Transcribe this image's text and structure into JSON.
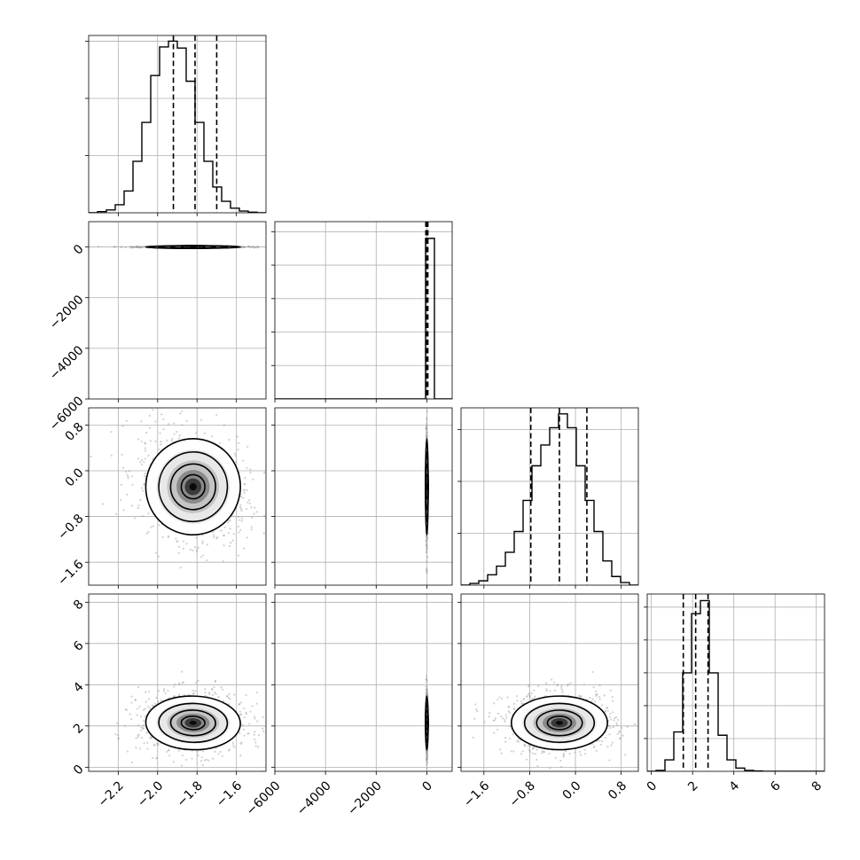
{
  "chart_data": {
    "type": "corner",
    "parameters": 4,
    "axes": [
      {
        "range": [
          -2.35,
          -1.45
        ],
        "ticks": [
          -2.2,
          -2.0,
          -1.8,
          -1.6
        ],
        "tick_labels": [
          "−2.2",
          "−2.0",
          "−1.8",
          "−1.6"
        ]
      },
      {
        "range": [
          -6000,
          1000
        ],
        "ticks": [
          -6000,
          -4000,
          -2000,
          0
        ],
        "tick_labels": [
          "−6000",
          "−4000",
          "−2000",
          "0"
        ]
      },
      {
        "range": [
          -2.0,
          1.1
        ],
        "ticks": [
          -1.6,
          -0.8,
          0.0,
          0.8
        ],
        "tick_labels": [
          "−1.6",
          "−0.8",
          "0.0",
          "0.8"
        ]
      },
      {
        "range": [
          -0.2,
          8.4
        ],
        "ticks": [
          0,
          2,
          4,
          6,
          8
        ],
        "tick_labels": [
          "0",
          "2",
          "4",
          "6",
          "8"
        ]
      }
    ],
    "marginals": [
      {
        "bin_edges": [
          -2.35,
          -2.305,
          -2.26,
          -2.215,
          -2.17,
          -2.125,
          -2.08,
          -2.035,
          -1.99,
          -1.945,
          -1.9,
          -1.855,
          -1.81,
          -1.765,
          -1.72,
          -1.675,
          -1.63,
          -1.585,
          -1.54,
          -1.495,
          -1.45
        ],
        "counts": [
          0,
          2,
          5,
          14,
          38,
          90,
          158,
          240,
          290,
          300,
          288,
          230,
          158,
          90,
          45,
          20,
          8,
          3,
          1,
          0
        ],
        "ylim": [
          0,
          310
        ],
        "yticks": [
          100,
          200,
          300
        ],
        "quantiles": [
          -1.92,
          -1.81,
          -1.7
        ]
      },
      {
        "bin_edges": [
          -6000,
          -5650,
          -5300,
          -4950,
          -4600,
          -4250,
          -3900,
          -3550,
          -3200,
          -2850,
          -2500,
          -2150,
          -1800,
          -1450,
          -1100,
          -750,
          -400,
          -50,
          300,
          650,
          1000
        ],
        "counts": [
          0,
          0,
          0,
          0,
          0,
          0,
          0,
          0,
          0,
          0,
          0,
          0,
          0,
          0,
          0,
          0,
          0,
          4800,
          0,
          0
        ],
        "ylim": [
          0,
          5300
        ],
        "yticks": [
          1000,
          2000,
          3000,
          4000,
          5000
        ],
        "quantiles": [
          -40,
          0,
          40
        ]
      },
      {
        "bin_edges": [
          -2.0,
          -1.845,
          -1.69,
          -1.535,
          -1.38,
          -1.225,
          -1.07,
          -0.915,
          -0.76,
          -0.605,
          -0.45,
          -0.295,
          -0.14,
          0.015,
          0.17,
          0.325,
          0.48,
          0.635,
          0.79,
          0.945,
          1.1
        ],
        "counts": [
          0,
          2,
          5,
          12,
          22,
          38,
          62,
          98,
          138,
          162,
          182,
          198,
          182,
          138,
          98,
          62,
          28,
          10,
          3,
          0
        ],
        "ylim": [
          0,
          205
        ],
        "yticks": [
          60,
          120,
          180
        ],
        "quantiles": [
          -0.78,
          -0.28,
          0.2
        ]
      },
      {
        "bin_edges": [
          -0.2,
          0.23,
          0.66,
          1.09,
          1.52,
          1.95,
          2.38,
          2.81,
          3.24,
          3.67,
          4.1,
          4.53,
          4.96,
          5.39,
          5.82,
          6.25,
          6.68,
          7.11,
          7.54,
          7.97,
          8.4
        ],
        "counts": [
          0,
          3,
          35,
          120,
          300,
          480,
          520,
          300,
          110,
          35,
          10,
          3,
          1,
          0,
          0,
          0,
          0,
          0,
          0,
          0
        ],
        "ylim": [
          0,
          540
        ],
        "yticks": [
          100,
          200,
          300,
          400,
          500
        ],
        "quantiles": [
          1.55,
          2.15,
          2.75
        ]
      }
    ],
    "joint": [
      {
        "x": 0,
        "y": 1,
        "center": [
          -1.82,
          0
        ],
        "sd": [
          0.12,
          12
        ],
        "rho": 0
      },
      {
        "x": 0,
        "y": 2,
        "center": [
          -1.82,
          -0.28
        ],
        "sd": [
          0.12,
          0.42
        ],
        "rho": -0.25
      },
      {
        "x": 0,
        "y": 3,
        "center": [
          -1.82,
          2.15
        ],
        "sd": [
          0.12,
          0.65
        ],
        "rho": -0.05
      },
      {
        "x": 1,
        "y": 2,
        "center": [
          0,
          -0.28
        ],
        "sd": [
          10,
          0.42
        ],
        "rho": 0
      },
      {
        "x": 1,
        "y": 3,
        "center": [
          0,
          2.15
        ],
        "sd": [
          10,
          0.65
        ],
        "rho": 0
      },
      {
        "x": 2,
        "y": 3,
        "center": [
          -0.28,
          2.15
        ],
        "sd": [
          0.42,
          0.65
        ],
        "rho": 0
      }
    ]
  }
}
